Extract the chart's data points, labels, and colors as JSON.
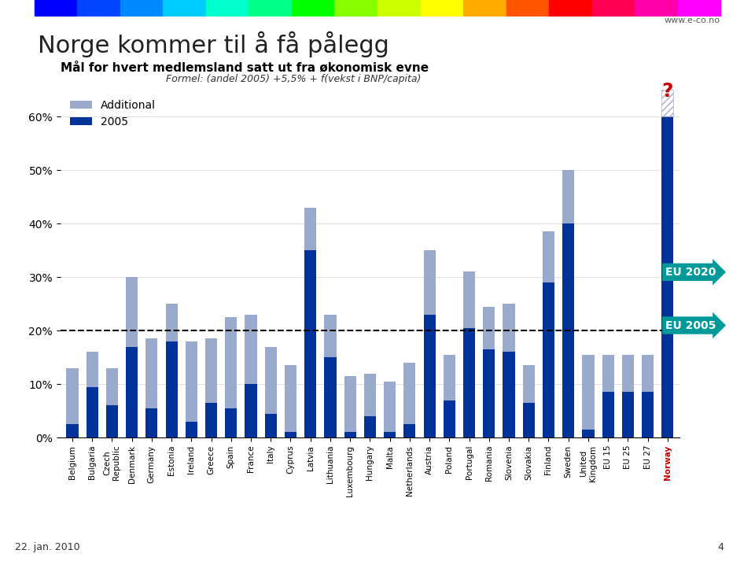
{
  "title": "Norge kommer til å få pålegg",
  "subtitle": "Mål for hvert medlemsland satt ut fra økonomisk evne",
  "formula": "Formel: (andel 2005) +5,5% + f(vekst i BNP/capita)",
  "website": "www.e-co.no",
  "date": "22. jan. 2010",
  "page": "4",
  "categories": [
    "Belgium",
    "Bulgaria",
    "Czech\nRepublic",
    "Denmark",
    "Germany",
    "Estonia",
    "Ireland",
    "Greece",
    "Spain",
    "France",
    "Italy",
    "Cyprus",
    "Latvia",
    "Lithuania",
    "Luxembourg",
    "Hungary",
    "Malta",
    "Netherlands",
    "Austria",
    "Poland",
    "Portugal",
    "Romania",
    "Slovenia",
    "Slovakia",
    "Finland",
    "Sweden",
    "United\nKingdom",
    "EU 15",
    "EU 25",
    "EU 27",
    "Norway"
  ],
  "values_2005": [
    2.5,
    9.5,
    6.0,
    17.0,
    5.5,
    18.0,
    3.0,
    6.5,
    5.5,
    10.0,
    4.5,
    1.0,
    35.0,
    15.0,
    1.0,
    4.0,
    1.0,
    2.5,
    23.0,
    7.0,
    20.5,
    16.5,
    16.0,
    6.5,
    29.0,
    40.0,
    1.5,
    8.5,
    8.5,
    8.5,
    60.0
  ],
  "values_additional": [
    10.5,
    6.5,
    7.0,
    13.0,
    13.0,
    7.0,
    15.0,
    12.0,
    17.0,
    13.0,
    12.5,
    12.5,
    8.0,
    8.0,
    10.5,
    8.0,
    9.5,
    11.5,
    12.0,
    8.5,
    10.5,
    8.0,
    9.0,
    7.0,
    9.5,
    10.0,
    14.0,
    7.0,
    7.0,
    7.0,
    0.0
  ],
  "color_2005": "#003399",
  "color_additional": "#99AACC",
  "color_norway_bar": "#003399",
  "color_norway_label": "#CC0000",
  "eu2020_line": 20.0,
  "eu2005_level": 8.5,
  "background_color": "#FFFFFF",
  "ylim": [
    0,
    65
  ],
  "legend_additional_label": "Additional",
  "legend_2005_label": "2005",
  "eu2020_label": "EU 2020",
  "eu2005_label": "EU 2005",
  "eu_label_color": "#009999",
  "rainbow_colors": [
    "#0000FF",
    "#0055FF",
    "#00AAFF",
    "#00FFFF",
    "#00FF88",
    "#00FF00",
    "#AAFF00",
    "#FFFF00",
    "#FFAA00",
    "#FF5500",
    "#FF0000",
    "#FF00AA",
    "#FF00FF"
  ],
  "norway_hatch_color": "#AAAACC"
}
